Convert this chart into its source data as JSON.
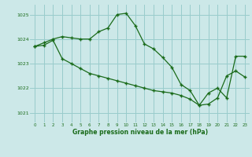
{
  "title": "Graphe pression niveau de la mer (hPa)",
  "background_color": "#cce8e8",
  "grid_color": "#99cccc",
  "line_color": "#1a6b1a",
  "xlim": [
    -0.5,
    23.5
  ],
  "ylim": [
    1020.6,
    1025.4
  ],
  "yticks": [
    1021,
    1022,
    1023,
    1024,
    1025
  ],
  "xticks": [
    0,
    1,
    2,
    3,
    4,
    5,
    6,
    7,
    8,
    9,
    10,
    11,
    12,
    13,
    14,
    15,
    16,
    17,
    18,
    19,
    20,
    21,
    22,
    23
  ],
  "series1_x": [
    0,
    1,
    2,
    3,
    4,
    5,
    6,
    7,
    8,
    9,
    10,
    11,
    12,
    13,
    14,
    15,
    16,
    17,
    18,
    19,
    20,
    21,
    22,
    23
  ],
  "series1_y": [
    1023.7,
    1023.85,
    1024.0,
    1024.1,
    1024.05,
    1024.0,
    1024.0,
    1024.3,
    1024.45,
    1025.0,
    1025.05,
    1024.55,
    1023.8,
    1023.6,
    1023.25,
    1022.85,
    1022.15,
    1021.9,
    1021.3,
    1021.8,
    1022.0,
    1021.6,
    1023.3,
    1023.3
  ],
  "series2_x": [
    0,
    1,
    2,
    3,
    4,
    5,
    6,
    7,
    8,
    9,
    10,
    11,
    12,
    13,
    14,
    15,
    16,
    17,
    18,
    19,
    20,
    21,
    22,
    23
  ],
  "series2_y": [
    1023.7,
    1023.75,
    1023.95,
    1023.2,
    1023.0,
    1022.8,
    1022.6,
    1022.5,
    1022.4,
    1022.3,
    1022.2,
    1022.1,
    1022.0,
    1021.9,
    1021.85,
    1021.8,
    1021.7,
    1021.55,
    1021.3,
    1021.35,
    1021.6,
    1022.5,
    1022.7,
    1022.45
  ]
}
